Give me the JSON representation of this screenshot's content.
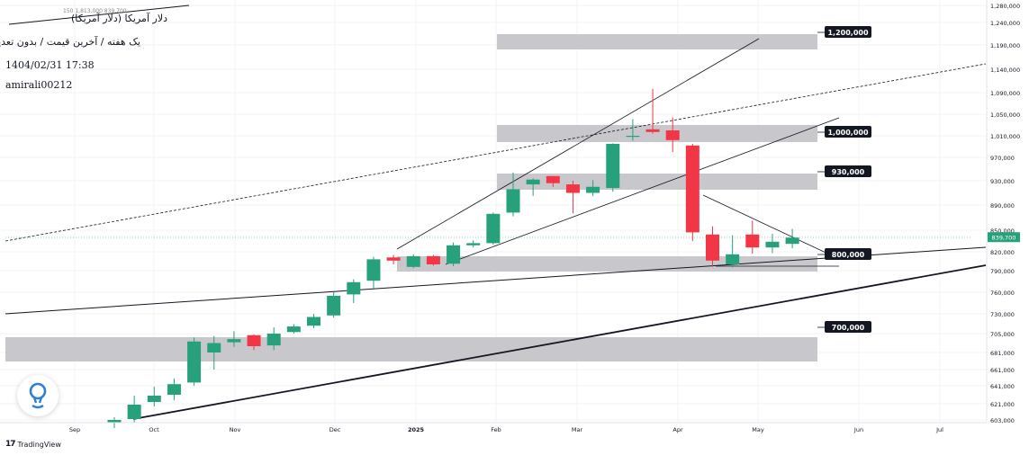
{
  "header": {
    "title": "دلار آمریکا (دلار آمریکا)",
    "subtitle": "یک هفته / آخرین قیمت / بدون تعدیل",
    "datetime": "1404/02/31 17:38",
    "author": "amirali00212",
    "ohlc_line": "150  1,813,000  839,700"
  },
  "footer": {
    "brand": "TradingView"
  },
  "colors": {
    "up": "#26a17b",
    "down": "#f23645",
    "zone": "#c8c8cc",
    "line": "#131722",
    "current": "#26a17b"
  },
  "icons": {
    "app": "lightbulb-pin-icon",
    "brand": "tradingview-logo-icon"
  },
  "chart_data": {
    "type": "candlestick",
    "timeframe": "1W",
    "x_labels": [
      "Sep",
      "Oct",
      "Nov",
      "Dec",
      "2025",
      "Feb",
      "Mar",
      "Apr",
      "May",
      "Jun",
      "Jul"
    ],
    "y_ticks": [
      "1,280,000",
      "1,240,000",
      "1,190,000",
      "1,140,000",
      "1,090,000",
      "1,050,000",
      "1,010,000",
      "970,000",
      "930,000",
      "890,000",
      "850,000",
      "820,000",
      "790,000",
      "760,000",
      "730,000",
      "705,000",
      "681,000",
      "661,000",
      "641,000",
      "621,000",
      "603,000"
    ],
    "current_price": "839,700",
    "candles": [
      {
        "o": 600000,
        "h": 606000,
        "l": 594000,
        "c": 603000
      },
      {
        "o": 604000,
        "h": 630000,
        "l": 600000,
        "c": 620000
      },
      {
        "o": 623000,
        "h": 640000,
        "l": 618000,
        "c": 630000
      },
      {
        "o": 631000,
        "h": 650000,
        "l": 625000,
        "c": 643000
      },
      {
        "o": 645000,
        "h": 700000,
        "l": 641000,
        "c": 695000
      },
      {
        "o": 681000,
        "h": 702000,
        "l": 661000,
        "c": 693000
      },
      {
        "o": 694000,
        "h": 708000,
        "l": 688000,
        "c": 698000
      },
      {
        "o": 703000,
        "h": 704000,
        "l": 684000,
        "c": 689000
      },
      {
        "o": 690000,
        "h": 713000,
        "l": 684000,
        "c": 705000
      },
      {
        "o": 707000,
        "h": 717000,
        "l": 705000,
        "c": 714000
      },
      {
        "o": 715000,
        "h": 730000,
        "l": 712000,
        "c": 726000
      },
      {
        "o": 728000,
        "h": 760000,
        "l": 725000,
        "c": 755000
      },
      {
        "o": 757000,
        "h": 778000,
        "l": 745000,
        "c": 774000
      },
      {
        "o": 776000,
        "h": 812000,
        "l": 765000,
        "c": 808000
      },
      {
        "o": 811000,
        "h": 815000,
        "l": 800000,
        "c": 806000
      },
      {
        "o": 796000,
        "h": 816000,
        "l": 794000,
        "c": 813000
      },
      {
        "o": 813000,
        "h": 815000,
        "l": 798000,
        "c": 800000
      },
      {
        "o": 801000,
        "h": 833000,
        "l": 797000,
        "c": 829000
      },
      {
        "o": 829000,
        "h": 836000,
        "l": 826000,
        "c": 832000
      },
      {
        "o": 832000,
        "h": 878000,
        "l": 830000,
        "c": 876000
      },
      {
        "o": 878000,
        "h": 944000,
        "l": 872000,
        "c": 916000
      },
      {
        "o": 924000,
        "h": 934000,
        "l": 905000,
        "c": 932000
      },
      {
        "o": 938000,
        "h": 938000,
        "l": 920000,
        "c": 926000
      },
      {
        "o": 924000,
        "h": 930000,
        "l": 877000,
        "c": 910000
      },
      {
        "o": 910000,
        "h": 931000,
        "l": 905000,
        "c": 920000
      },
      {
        "o": 918000,
        "h": 996000,
        "l": 912000,
        "c": 995000
      },
      {
        "o": 1008000,
        "h": 1041000,
        "l": 1001000,
        "c": 1010000
      },
      {
        "o": 1022000,
        "h": 1098000,
        "l": 1014000,
        "c": 1017000
      },
      {
        "o": 1020000,
        "h": 1044000,
        "l": 980000,
        "c": 1002000
      },
      {
        "o": 992000,
        "h": 995000,
        "l": 835000,
        "c": 847000
      },
      {
        "o": 844000,
        "h": 856000,
        "l": 796000,
        "c": 806000
      },
      {
        "o": 800000,
        "h": 843000,
        "l": 795000,
        "c": 816000
      },
      {
        "o": 844000,
        "h": 865000,
        "l": 817000,
        "c": 826000
      },
      {
        "o": 826000,
        "h": 845000,
        "l": 818000,
        "c": 834000
      },
      {
        "o": 831000,
        "h": 852000,
        "l": 825000,
        "c": 839700
      }
    ],
    "levels": [
      {
        "label": "1,200,000",
        "value": 1200000
      },
      {
        "label": "1,000,000",
        "value": 1000000
      },
      {
        "label": "930,000",
        "value": 930000
      },
      {
        "label": "800,000",
        "value": 800000
      },
      {
        "label": "700,000",
        "value": 700000
      }
    ]
  }
}
